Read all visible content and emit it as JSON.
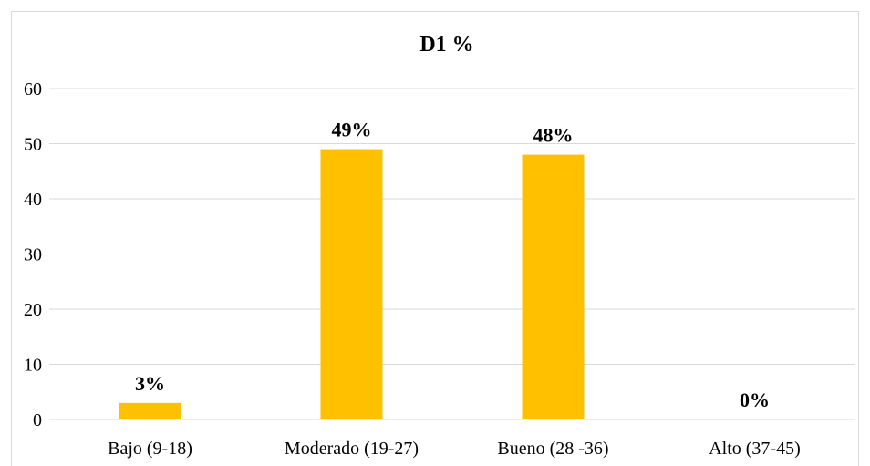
{
  "chart_data": {
    "type": "bar",
    "title": "D1 %",
    "xlabel": "",
    "ylabel": "",
    "categories": [
      "Bajo (9-18)",
      "Moderado (19-27)",
      "Bueno (28 -36)",
      "Alto (37-45)"
    ],
    "values": [
      3,
      49,
      48,
      0
    ],
    "data_labels": [
      "3%",
      "49%",
      "48%",
      "0%"
    ],
    "ylim": [
      0,
      60
    ],
    "yticks": [
      0,
      10,
      20,
      30,
      40,
      50,
      60
    ],
    "grid": true,
    "legend": "none",
    "bar_color": "#FFC000",
    "gridline_color": "#D9D9D9"
  }
}
